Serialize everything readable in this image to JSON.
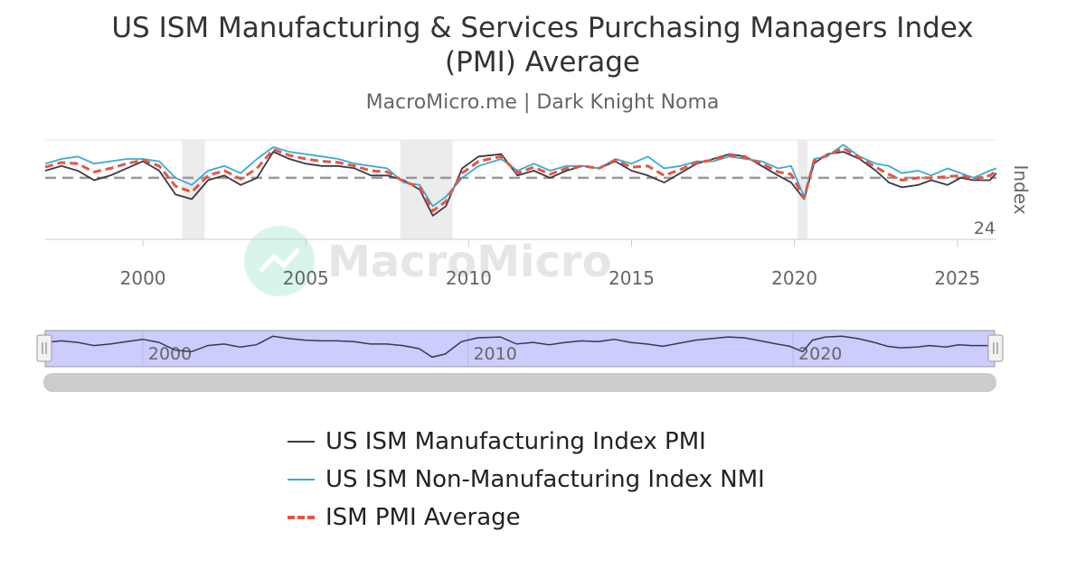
{
  "header": {
    "title": "US ISM Manufacturing & Services Purchasing Managers Index\n(PMI) Average",
    "subtitle": "MacroMicro.me | Dark Knight Noma"
  },
  "watermark": {
    "text": "MacroMicro"
  },
  "colors": {
    "manufacturing": "#3a3a4a",
    "services": "#3aaad6",
    "average": "#e8553e",
    "reference": "#999999",
    "navigator_fill": "#ccccff"
  },
  "chart_data": {
    "type": "line",
    "title": "US ISM Manufacturing & Services Purchasing Managers Index (PMI) Average",
    "subtitle": "MacroMicro.me | Dark Knight Noma",
    "ylabel": "Index",
    "x_ticks": [
      "2000",
      "2005",
      "2010",
      "2015",
      "2020",
      "2025"
    ],
    "y_tick_labels": [
      "24"
    ],
    "y_range": [
      24,
      66
    ],
    "x_range": [
      1997.0,
      2026.2
    ],
    "reference_line": 50,
    "recessions": [
      [
        2001.2,
        2001.9
      ],
      [
        2007.9,
        2009.5
      ],
      [
        2020.1,
        2020.4
      ]
    ],
    "navigator_ticks": [
      "2000",
      "2010",
      "2020"
    ],
    "legend_position": "bottom",
    "series": [
      {
        "name": "US ISM Manufacturing Index PMI",
        "style": "solid",
        "points": [
          [
            1997.0,
            53
          ],
          [
            1997.5,
            55
          ],
          [
            1998.0,
            53
          ],
          [
            1998.5,
            49
          ],
          [
            1999.0,
            51
          ],
          [
            1999.5,
            54
          ],
          [
            2000.0,
            57
          ],
          [
            2000.5,
            53
          ],
          [
            2001.0,
            43
          ],
          [
            2001.5,
            41
          ],
          [
            2002.0,
            49
          ],
          [
            2002.5,
            51
          ],
          [
            2003.0,
            47
          ],
          [
            2003.5,
            50
          ],
          [
            2004.0,
            61
          ],
          [
            2004.5,
            58
          ],
          [
            2005.0,
            56
          ],
          [
            2005.5,
            55
          ],
          [
            2006.0,
            55
          ],
          [
            2006.5,
            54
          ],
          [
            2007.0,
            51
          ],
          [
            2007.5,
            51
          ],
          [
            2008.0,
            49
          ],
          [
            2008.5,
            45
          ],
          [
            2008.9,
            34
          ],
          [
            2009.3,
            38
          ],
          [
            2009.8,
            54
          ],
          [
            2010.3,
            59
          ],
          [
            2011.0,
            60
          ],
          [
            2011.5,
            51
          ],
          [
            2012.0,
            53
          ],
          [
            2012.5,
            50
          ],
          [
            2013.0,
            53
          ],
          [
            2013.5,
            55
          ],
          [
            2014.0,
            54
          ],
          [
            2014.5,
            57
          ],
          [
            2015.0,
            53
          ],
          [
            2015.5,
            51
          ],
          [
            2016.0,
            48
          ],
          [
            2016.5,
            52
          ],
          [
            2017.0,
            56
          ],
          [
            2017.5,
            58
          ],
          [
            2018.0,
            60
          ],
          [
            2018.5,
            59
          ],
          [
            2019.0,
            55
          ],
          [
            2019.5,
            51
          ],
          [
            2019.9,
            48
          ],
          [
            2020.3,
            41
          ],
          [
            2020.6,
            56
          ],
          [
            2021.0,
            60
          ],
          [
            2021.5,
            61
          ],
          [
            2022.0,
            58
          ],
          [
            2022.5,
            53
          ],
          [
            2022.9,
            48
          ],
          [
            2023.3,
            46
          ],
          [
            2023.8,
            47
          ],
          [
            2024.2,
            49
          ],
          [
            2024.7,
            47
          ],
          [
            2025.1,
            50
          ],
          [
            2025.5,
            49
          ],
          [
            2026.0,
            49
          ],
          [
            2026.2,
            52
          ]
        ]
      },
      {
        "name": "US ISM Non-Manufacturing Index NMI",
        "style": "solid",
        "points": [
          [
            1997.0,
            56
          ],
          [
            1997.5,
            58
          ],
          [
            1998.0,
            59
          ],
          [
            1998.5,
            56
          ],
          [
            1999.0,
            57
          ],
          [
            1999.5,
            58
          ],
          [
            2000.0,
            58
          ],
          [
            2000.5,
            57
          ],
          [
            2001.0,
            50
          ],
          [
            2001.5,
            47
          ],
          [
            2002.0,
            53
          ],
          [
            2002.5,
            55
          ],
          [
            2003.0,
            52
          ],
          [
            2003.5,
            58
          ],
          [
            2004.0,
            63
          ],
          [
            2004.5,
            61
          ],
          [
            2005.0,
            60
          ],
          [
            2005.5,
            59
          ],
          [
            2006.0,
            58
          ],
          [
            2006.5,
            56
          ],
          [
            2007.0,
            55
          ],
          [
            2007.5,
            54
          ],
          [
            2008.0,
            48
          ],
          [
            2008.5,
            47
          ],
          [
            2008.9,
            38
          ],
          [
            2009.3,
            42
          ],
          [
            2009.8,
            50
          ],
          [
            2010.3,
            55
          ],
          [
            2011.0,
            58
          ],
          [
            2011.5,
            53
          ],
          [
            2012.0,
            56
          ],
          [
            2012.5,
            53
          ],
          [
            2013.0,
            55
          ],
          [
            2013.5,
            55
          ],
          [
            2014.0,
            54
          ],
          [
            2014.5,
            58
          ],
          [
            2015.0,
            56
          ],
          [
            2015.5,
            59
          ],
          [
            2016.0,
            54
          ],
          [
            2016.5,
            55
          ],
          [
            2017.0,
            57
          ],
          [
            2017.5,
            57
          ],
          [
            2018.0,
            59
          ],
          [
            2018.5,
            58
          ],
          [
            2019.0,
            57
          ],
          [
            2019.5,
            54
          ],
          [
            2019.9,
            55
          ],
          [
            2020.3,
            42
          ],
          [
            2020.6,
            58
          ],
          [
            2021.0,
            59
          ],
          [
            2021.5,
            64
          ],
          [
            2022.0,
            59
          ],
          [
            2022.5,
            56
          ],
          [
            2022.9,
            55
          ],
          [
            2023.3,
            52
          ],
          [
            2023.8,
            53
          ],
          [
            2024.2,
            51
          ],
          [
            2024.7,
            54
          ],
          [
            2025.1,
            52
          ],
          [
            2025.5,
            50
          ],
          [
            2026.0,
            53
          ],
          [
            2026.2,
            54
          ]
        ]
      },
      {
        "name": "ISM PMI Average",
        "style": "dashed",
        "points": [
          [
            1997.0,
            54.5
          ],
          [
            1997.5,
            56.5
          ],
          [
            1998.0,
            56
          ],
          [
            1998.5,
            52.5
          ],
          [
            1999.0,
            54
          ],
          [
            1999.5,
            56
          ],
          [
            2000.0,
            57.5
          ],
          [
            2000.5,
            55
          ],
          [
            2001.0,
            46.5
          ],
          [
            2001.5,
            44
          ],
          [
            2002.0,
            51
          ],
          [
            2002.5,
            53
          ],
          [
            2003.0,
            49.5
          ],
          [
            2003.5,
            54
          ],
          [
            2004.0,
            62
          ],
          [
            2004.5,
            59.5
          ],
          [
            2005.0,
            58
          ],
          [
            2005.5,
            57
          ],
          [
            2006.0,
            56.5
          ],
          [
            2006.5,
            55
          ],
          [
            2007.0,
            53
          ],
          [
            2007.5,
            52.5
          ],
          [
            2008.0,
            48.5
          ],
          [
            2008.5,
            46
          ],
          [
            2008.9,
            36
          ],
          [
            2009.3,
            40
          ],
          [
            2009.8,
            52
          ],
          [
            2010.3,
            57
          ],
          [
            2011.0,
            59
          ],
          [
            2011.5,
            52
          ],
          [
            2012.0,
            54.5
          ],
          [
            2012.5,
            51.5
          ],
          [
            2013.0,
            54
          ],
          [
            2013.5,
            55
          ],
          [
            2014.0,
            54
          ],
          [
            2014.5,
            57.5
          ],
          [
            2015.0,
            54.5
          ],
          [
            2015.5,
            55
          ],
          [
            2016.0,
            51
          ],
          [
            2016.5,
            53.5
          ],
          [
            2017.0,
            56.5
          ],
          [
            2017.5,
            57.5
          ],
          [
            2018.0,
            59.5
          ],
          [
            2018.5,
            58.5
          ],
          [
            2019.0,
            56
          ],
          [
            2019.5,
            52.5
          ],
          [
            2019.9,
            51.5
          ],
          [
            2020.3,
            41.5
          ],
          [
            2020.6,
            57
          ],
          [
            2021.0,
            59.5
          ],
          [
            2021.5,
            62.5
          ],
          [
            2022.0,
            58.5
          ],
          [
            2022.5,
            54.5
          ],
          [
            2022.9,
            51.5
          ],
          [
            2023.3,
            49
          ],
          [
            2023.8,
            50
          ],
          [
            2024.2,
            50
          ],
          [
            2024.7,
            50.5
          ],
          [
            2025.1,
            51
          ],
          [
            2025.5,
            49.5
          ],
          [
            2026.0,
            51
          ],
          [
            2026.2,
            53
          ]
        ]
      }
    ]
  }
}
